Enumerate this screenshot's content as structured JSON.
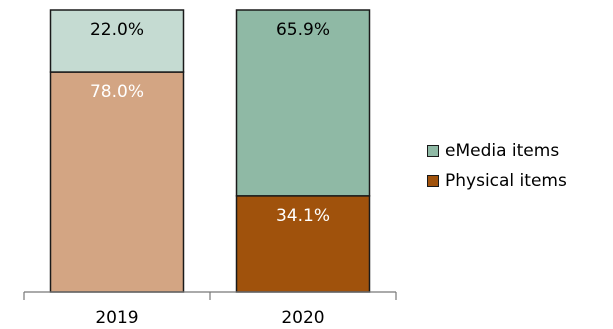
{
  "chart_data": {
    "type": "bar",
    "stacked": true,
    "categories": [
      "2019",
      "2020"
    ],
    "series": [
      {
        "name": "Physical items",
        "values": [
          78.0,
          34.1
        ],
        "labels": [
          "78.0%",
          "34.1%"
        ],
        "color": "#d3a583",
        "colors": [
          "#d3a583",
          "#a0520c"
        ],
        "label_colors": [
          "#ffffff",
          "#ffffff"
        ]
      },
      {
        "name": "eMedia items",
        "values": [
          22.0,
          65.9
        ],
        "labels": [
          "22.0%",
          "65.9%"
        ],
        "color": "#8fb9a5",
        "colors": [
          "#c5dbd2",
          "#8fb9a5"
        ],
        "label_colors": [
          "#000000",
          "#000000"
        ]
      }
    ],
    "ylim": [
      0,
      100
    ],
    "grid": false,
    "legend_position": "right"
  }
}
